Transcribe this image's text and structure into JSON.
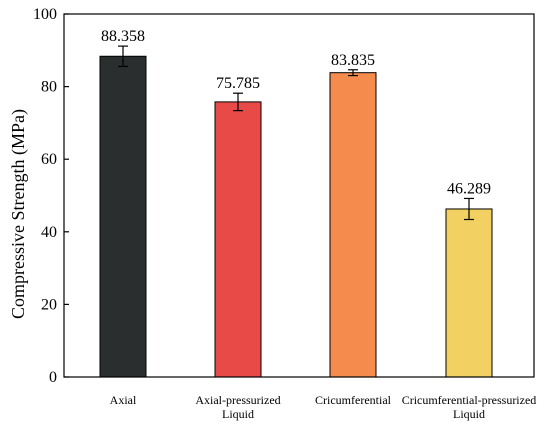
{
  "chart_data": {
    "type": "bar",
    "title": "",
    "xlabel": "",
    "ylabel": "Compressive Strength (MPa)",
    "ylim": [
      0,
      100
    ],
    "yticks": [
      0,
      20,
      40,
      60,
      80,
      100
    ],
    "grid": false,
    "legend": "none",
    "categories": [
      [
        "Axial"
      ],
      [
        "Axial-pressurized",
        "Liquid"
      ],
      [
        "Cricumferential"
      ],
      [
        "Cricumferential-pressurized",
        "Liquid"
      ]
    ],
    "values": [
      88.358,
      75.785,
      83.835,
      46.289
    ],
    "value_labels": [
      "88.358",
      "75.785",
      "83.835",
      "46.289"
    ],
    "errors": [
      2.8,
      2.4,
      0.8,
      2.9
    ],
    "colors": [
      "#2b2e2e",
      "#e84a47",
      "#f58b4c",
      "#f2d061"
    ]
  }
}
